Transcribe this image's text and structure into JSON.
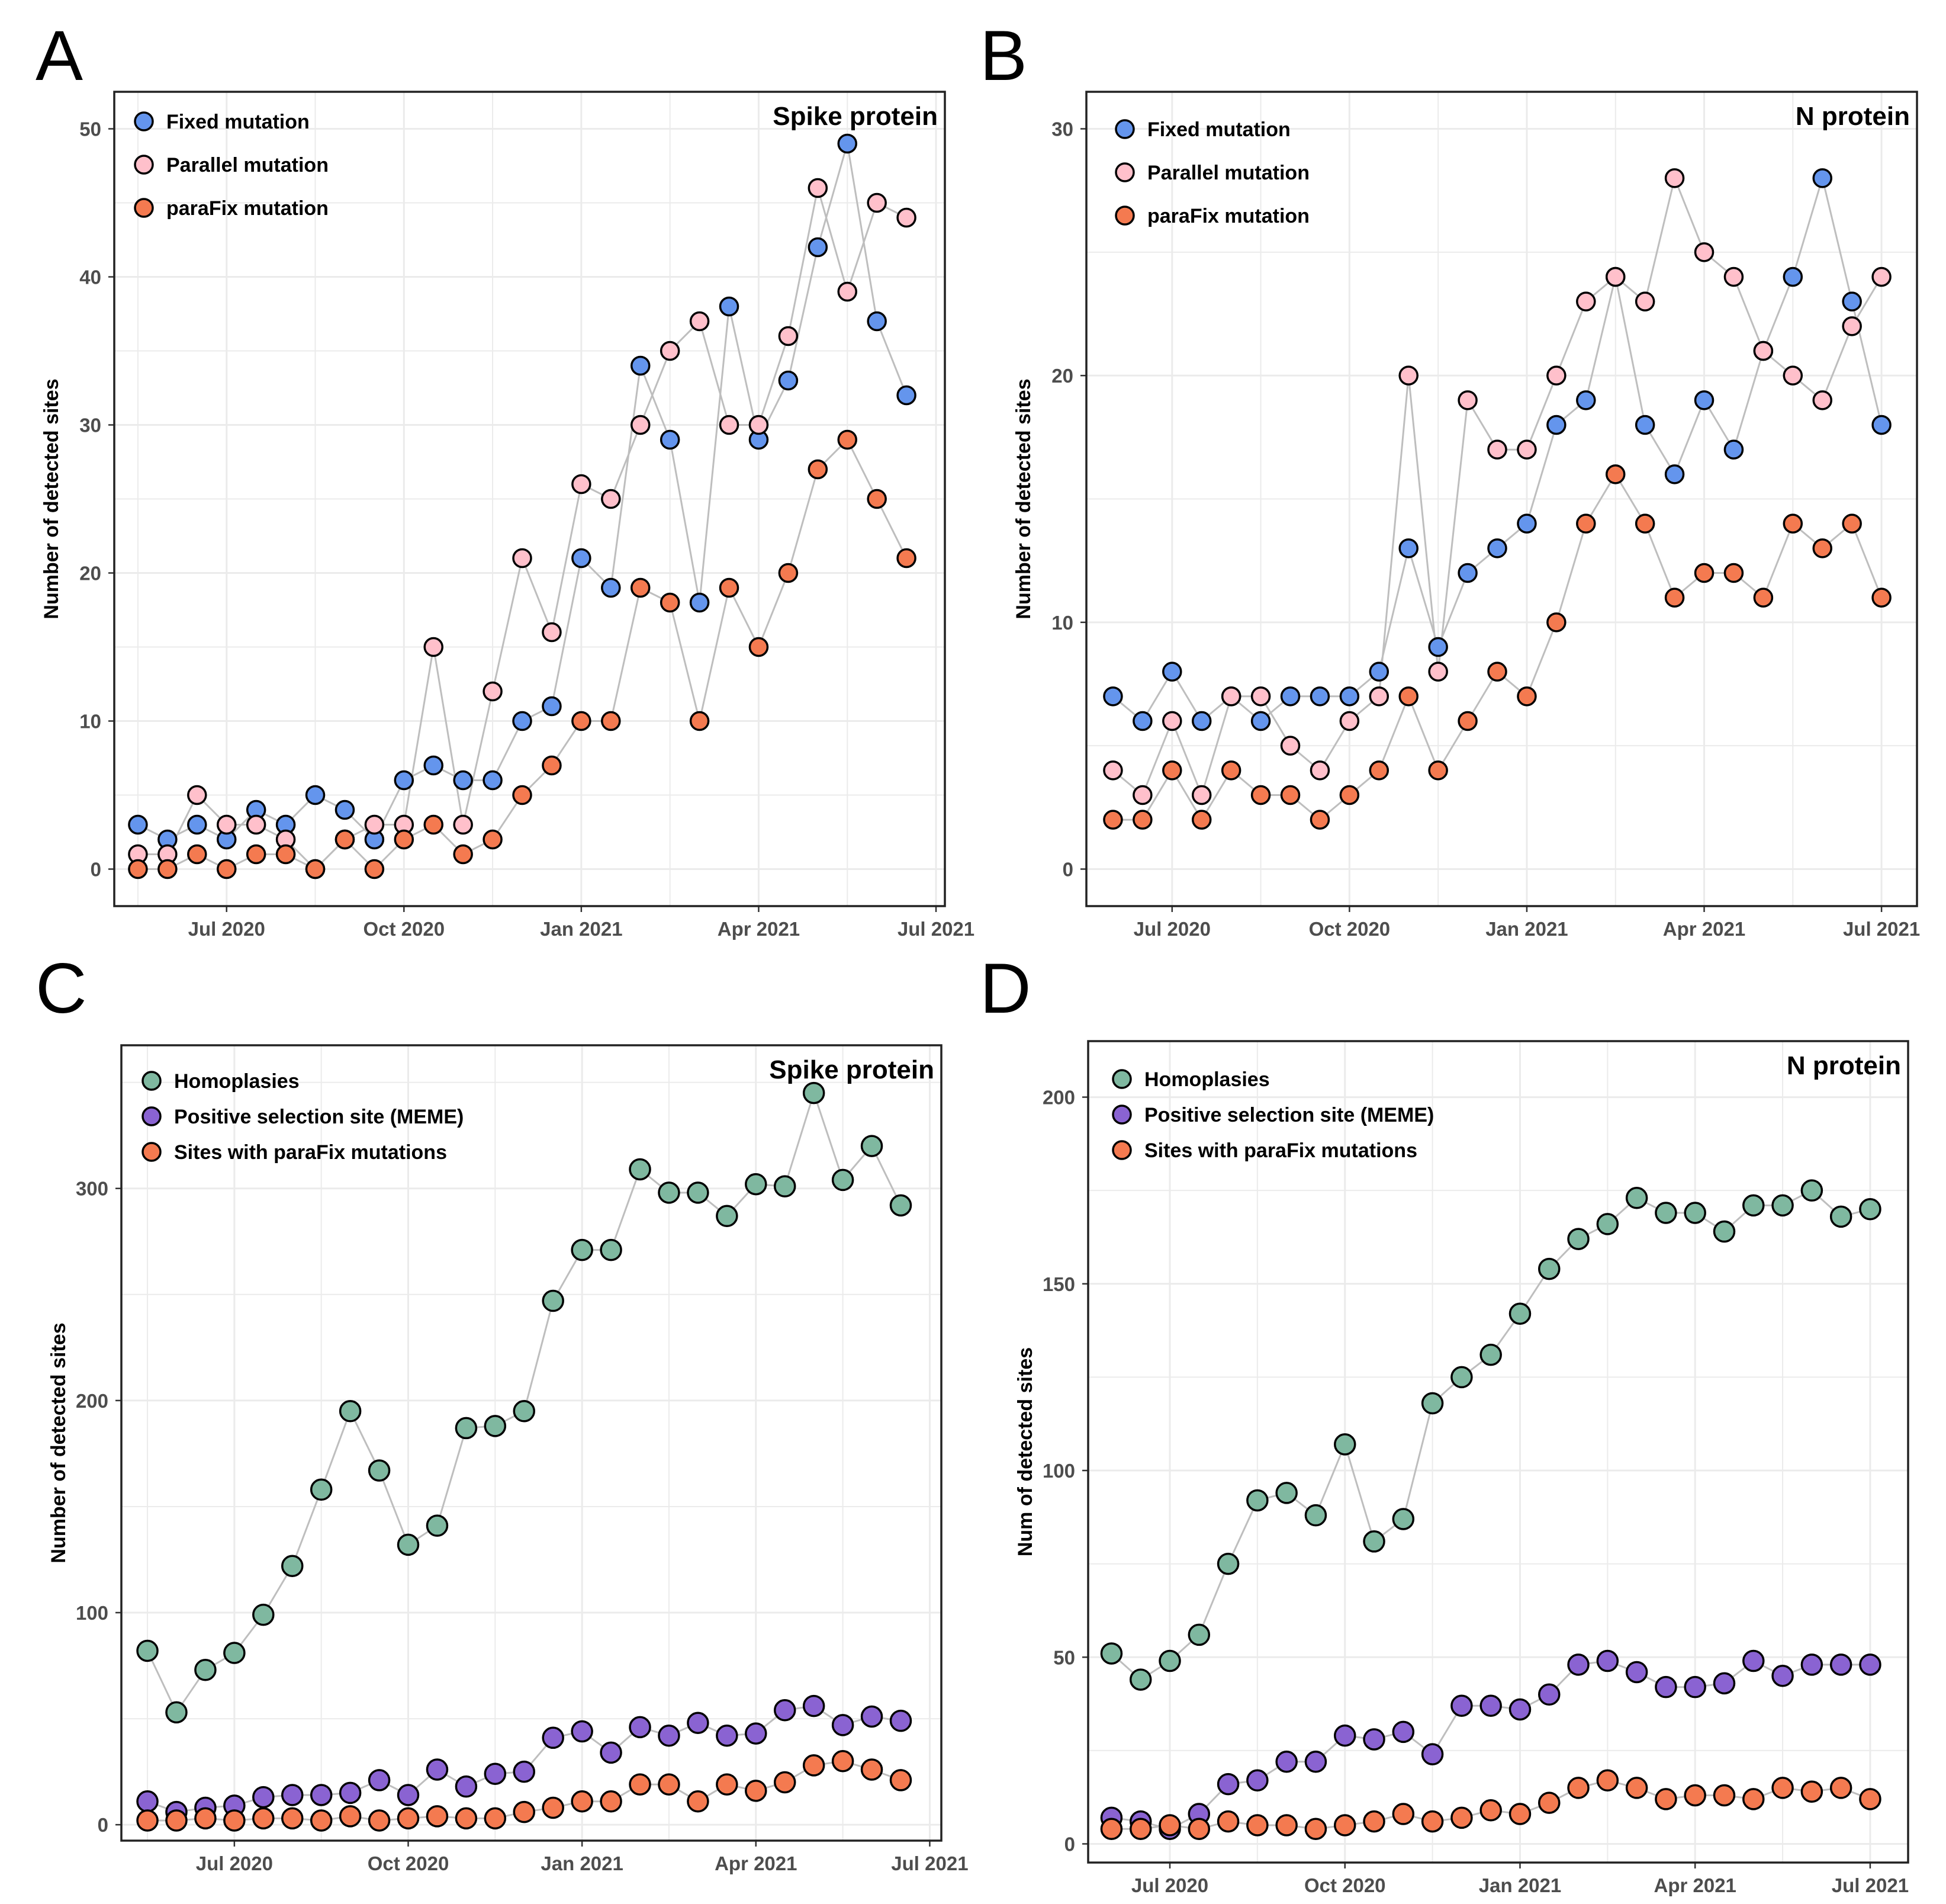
{
  "colors": {
    "fixed": "#6495ED",
    "parallel": "#FFC0CB",
    "parafix": "#F47A50",
    "homoplasies": "#7FB8A0",
    "positive": "#8A63D2",
    "line": "#BEBEBE",
    "grid": "#EBEBEB"
  },
  "chart_data": [
    {
      "panel": "A",
      "type": "line",
      "title": "Spike protein",
      "xlabel": "",
      "ylabel": "Number of detected sites",
      "xlim": [
        -0.9,
        13.15
      ],
      "ylim": [
        -2.5,
        52.5
      ],
      "yticks": [
        0,
        10,
        20,
        30,
        40,
        50
      ],
      "ytick_labels": [
        "0",
        "10",
        "20",
        "30",
        "40",
        "50"
      ],
      "xticks": [
        1,
        4,
        7,
        10,
        13
      ],
      "xtick_labels": [
        "Jul 2020",
        "Oct 2020",
        "Jan 2021",
        "Apr 2021",
        "Jul 2021"
      ],
      "x": [
        -0.5,
        0,
        0.5,
        1,
        1.5,
        2,
        2.5,
        3,
        3.5,
        4,
        4.5,
        5,
        5.5,
        6,
        6.5,
        7,
        7.5,
        8,
        8.5,
        9,
        9.5,
        10,
        10.5,
        11,
        11.5,
        12,
        12.5,
        13
      ],
      "legend": [
        "Fixed mutation",
        "Parallel mutation",
        "paraFix mutation"
      ],
      "legend_position": "top-left",
      "series": [
        {
          "name": "Fixed mutation",
          "color_key": "fixed",
          "values": [
            3,
            2,
            3,
            2,
            4,
            3,
            5,
            4,
            2,
            6,
            7,
            6,
            6,
            10,
            11,
            21,
            19,
            34,
            29,
            18,
            38,
            29,
            33,
            42,
            49,
            37,
            32,
            null
          ]
        },
        {
          "name": "Parallel mutation",
          "color_key": "parallel",
          "values": [
            1,
            1,
            5,
            3,
            3,
            2,
            0,
            2,
            3,
            3,
            15,
            3,
            12,
            21,
            16,
            26,
            25,
            30,
            35,
            37,
            30,
            30,
            36,
            46,
            39,
            45,
            44,
            null
          ]
        },
        {
          "name": "paraFix mutation",
          "color_key": "parafix",
          "values": [
            0,
            0,
            1,
            0,
            1,
            1,
            0,
            2,
            0,
            2,
            3,
            1,
            2,
            5,
            7,
            10,
            10,
            19,
            18,
            10,
            19,
            15,
            20,
            27,
            29,
            25,
            21,
            null
          ]
        }
      ]
    },
    {
      "panel": "B",
      "type": "line",
      "title": "N protein",
      "xlabel": "",
      "ylabel": "Number of detected sites",
      "xlim": [
        -0.45,
        13.6
      ],
      "ylim": [
        -1.5,
        31.5
      ],
      "yticks": [
        0,
        10,
        20,
        30
      ],
      "ytick_labels": [
        "0",
        "10",
        "20",
        "30"
      ],
      "xticks": [
        1,
        4,
        7,
        10,
        13
      ],
      "xtick_labels": [
        "Jul 2020",
        "Oct 2020",
        "Jan 2021",
        "Apr 2021",
        "Jul 2021"
      ],
      "x": [
        0,
        0.5,
        1,
        1.5,
        2,
        2.5,
        3,
        3.5,
        4,
        4.5,
        5,
        5.5,
        6,
        6.5,
        7,
        7.5,
        8,
        8.5,
        9,
        9.5,
        10,
        10.5,
        11,
        11.5,
        12,
        12.5,
        13
      ],
      "legend": [
        "Fixed mutation",
        "Parallel mutation",
        "paraFix mutation"
      ],
      "legend_position": "top-left",
      "series": [
        {
          "name": "Fixed mutation",
          "color_key": "fixed",
          "values": [
            7,
            6,
            8,
            6,
            7,
            6,
            7,
            7,
            7,
            8,
            13,
            9,
            12,
            13,
            14,
            18,
            19,
            24,
            18,
            16,
            19,
            17,
            21,
            24,
            28,
            23,
            18
          ]
        },
        {
          "name": "Parallel mutation",
          "color_key": "parallel",
          "values": [
            4,
            3,
            6,
            3,
            7,
            7,
            5,
            4,
            6,
            7,
            20,
            8,
            19,
            17,
            17,
            20,
            23,
            24,
            23,
            28,
            25,
            24,
            21,
            20,
            19,
            22,
            24
          ]
        },
        {
          "name": "paraFix mutation",
          "color_key": "parafix",
          "values": [
            2,
            2,
            4,
            2,
            4,
            3,
            3,
            2,
            3,
            4,
            7,
            4,
            6,
            8,
            7,
            10,
            14,
            16,
            14,
            11,
            12,
            12,
            11,
            14,
            13,
            14,
            11
          ]
        }
      ]
    },
    {
      "panel": "C",
      "type": "line",
      "title": "Spike protein",
      "xlabel": "",
      "ylabel": "Number of detected sites",
      "xlim": [
        -0.95,
        13.2
      ],
      "ylim": [
        -7.5,
        367.5
      ],
      "yticks": [
        0,
        100,
        200,
        300
      ],
      "ytick_labels": [
        "0",
        "100",
        "200",
        "300"
      ],
      "xticks": [
        1,
        4,
        7,
        10,
        13
      ],
      "xtick_labels": [
        "Jul 2020",
        "Oct 2020",
        "Jan 2021",
        "Apr 2021",
        "Jul 2021"
      ],
      "x": [
        -0.5,
        0,
        0.5,
        1,
        1.5,
        2,
        2.5,
        3,
        3.5,
        4,
        4.5,
        5,
        5.5,
        6,
        6.5,
        7,
        7.5,
        8,
        8.5,
        9,
        9.5,
        10,
        10.5,
        11,
        11.5,
        12,
        12.5,
        13
      ],
      "legend": [
        "Homoplasies",
        "Positive selection site (MEME)",
        "Sites with paraFix mutations"
      ],
      "legend_position": "top-left",
      "series": [
        {
          "name": "Homoplasies",
          "color_key": "homoplasies",
          "values": [
            82,
            53,
            73,
            81,
            99,
            122,
            158,
            195,
            167,
            132,
            141,
            187,
            188,
            195,
            247,
            271,
            271,
            309,
            298,
            298,
            287,
            302,
            301,
            345,
            304,
            320,
            292,
            null
          ]
        },
        {
          "name": "Positive selection site (MEME)",
          "color_key": "positive",
          "values": [
            11,
            6,
            8,
            9,
            13,
            14,
            14,
            15,
            21,
            14,
            26,
            18,
            24,
            25,
            41,
            44,
            34,
            46,
            42,
            48,
            42,
            43,
            54,
            56,
            47,
            51,
            49,
            null
          ]
        },
        {
          "name": "Sites with paraFix mutations",
          "color_key": "parafix",
          "values": [
            2,
            2,
            3,
            2,
            3,
            3,
            2,
            4,
            2,
            3,
            4,
            3,
            3,
            6,
            8,
            11,
            11,
            19,
            19,
            11,
            19,
            16,
            20,
            28,
            30,
            26,
            21,
            null
          ]
        }
      ]
    },
    {
      "panel": "D",
      "type": "line",
      "title": "N protein",
      "xlabel": "",
      "ylabel": "Num of detected sites",
      "xlim": [
        -0.4,
        13.65
      ],
      "ylim": [
        -5,
        215
      ],
      "yticks": [
        0,
        50,
        100,
        150,
        200
      ],
      "ytick_labels": [
        "0",
        "50",
        "100",
        "150",
        "200"
      ],
      "xticks": [
        1,
        4,
        7,
        10,
        13
      ],
      "xtick_labels": [
        "Jul 2020",
        "Oct 2020",
        "Jan 2021",
        "Apr 2021",
        "Jul 2021"
      ],
      "x": [
        0,
        0.5,
        1,
        1.5,
        2,
        2.5,
        3,
        3.5,
        4,
        4.5,
        5,
        5.5,
        6,
        6.5,
        7,
        7.5,
        8,
        8.5,
        9,
        9.5,
        10,
        10.5,
        11,
        11.5,
        12,
        12.5,
        13
      ],
      "legend": [
        "Homoplasies",
        "Positive selection site (MEME)",
        "Sites with paraFix mutations"
      ],
      "legend_position": "top-left",
      "series": [
        {
          "name": "Homoplasies",
          "color_key": "homoplasies",
          "values": [
            51,
            44,
            49,
            56,
            75,
            92,
            94,
            88,
            107,
            81,
            87,
            118,
            125,
            131,
            142,
            154,
            162,
            166,
            173,
            169,
            169,
            164,
            171,
            171,
            175,
            168,
            170
          ]
        },
        {
          "name": "Positive selection site (MEME)",
          "color_key": "positive",
          "values": [
            7,
            6,
            4,
            8,
            16,
            17,
            22,
            22,
            29,
            28,
            30,
            24,
            37,
            37,
            36,
            40,
            48,
            49,
            46,
            42,
            42,
            43,
            49,
            45,
            48,
            48,
            48
          ]
        },
        {
          "name": "Sites with paraFix mutations",
          "color_key": "parafix",
          "values": [
            4,
            4,
            5,
            4,
            6,
            5,
            5,
            4,
            5,
            6,
            8,
            6,
            7,
            9,
            8,
            11,
            15,
            17,
            15,
            12,
            13,
            13,
            12,
            15,
            14,
            15,
            12
          ]
        }
      ]
    }
  ]
}
